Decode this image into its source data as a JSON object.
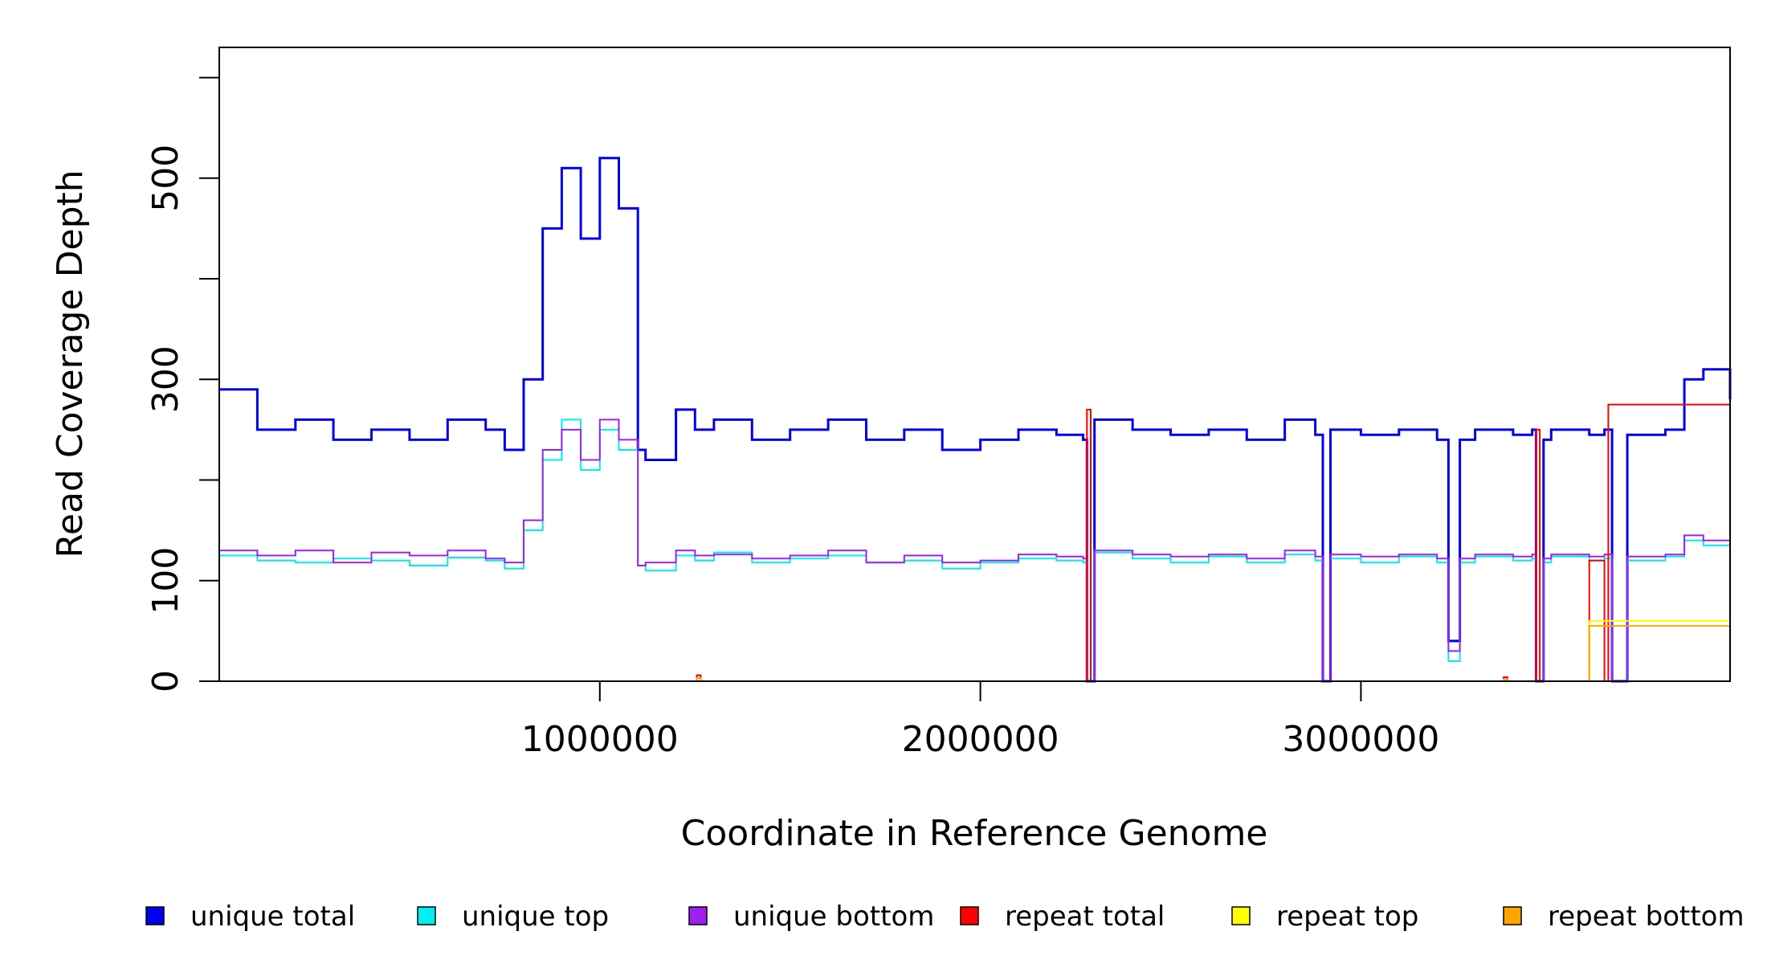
{
  "chart_data": {
    "type": "line",
    "title": "",
    "xlabel": "Coordinate in Reference Genome",
    "ylabel": "Read Coverage Depth",
    "xlim": [
      0,
      3970000
    ],
    "ylim": [
      0,
      630
    ],
    "x_ticks": [
      1000000,
      2000000,
      3000000
    ],
    "x_tick_labels": [
      "1000000",
      "2000000",
      "3000000"
    ],
    "y_ticks": [
      0,
      100,
      200,
      300,
      400,
      500,
      600
    ],
    "y_tick_labels": [
      "0",
      "100",
      "",
      "300",
      "",
      "500",
      ""
    ],
    "grid": false,
    "legend": "bottom",
    "series_style": "step",
    "series": [
      {
        "name": "unique total",
        "color": "#0000ee",
        "x": [
          0,
          100000,
          200000,
          300000,
          400000,
          500000,
          600000,
          700000,
          750000,
          800000,
          850000,
          900000,
          950000,
          1000000,
          1050000,
          1100000,
          1120000,
          1200000,
          1250000,
          1300000,
          1400000,
          1500000,
          1600000,
          1700000,
          1800000,
          1900000,
          2000000,
          2100000,
          2200000,
          2270000,
          2280000,
          2300000,
          2400000,
          2500000,
          2600000,
          2700000,
          2800000,
          2880000,
          2900000,
          2920000,
          3000000,
          3100000,
          3200000,
          3230000,
          3260000,
          3300000,
          3400000,
          3450000,
          3460000,
          3480000,
          3500000,
          3600000,
          3640000,
          3660000,
          3700000,
          3800000,
          3850000,
          3900000,
          3970000
        ],
        "values": [
          290,
          250,
          260,
          240,
          250,
          240,
          260,
          250,
          230,
          300,
          450,
          510,
          440,
          520,
          470,
          230,
          220,
          270,
          250,
          260,
          240,
          250,
          260,
          240,
          250,
          230,
          240,
          250,
          245,
          240,
          0,
          260,
          250,
          245,
          250,
          240,
          260,
          245,
          0,
          250,
          245,
          250,
          240,
          40,
          240,
          250,
          245,
          250,
          0,
          240,
          250,
          245,
          250,
          0,
          245,
          250,
          300,
          310,
          280
        ]
      },
      {
        "name": "unique top",
        "color": "#00eeee",
        "x": [
          0,
          100000,
          200000,
          300000,
          400000,
          500000,
          600000,
          700000,
          750000,
          800000,
          850000,
          900000,
          950000,
          1000000,
          1050000,
          1100000,
          1120000,
          1200000,
          1250000,
          1300000,
          1400000,
          1500000,
          1600000,
          1700000,
          1800000,
          1900000,
          2000000,
          2100000,
          2200000,
          2270000,
          2280000,
          2300000,
          2400000,
          2500000,
          2600000,
          2700000,
          2800000,
          2880000,
          2900000,
          2920000,
          3000000,
          3100000,
          3200000,
          3230000,
          3260000,
          3300000,
          3400000,
          3450000,
          3460000,
          3480000,
          3500000,
          3600000,
          3640000,
          3660000,
          3700000,
          3800000,
          3850000,
          3900000,
          3970000
        ],
        "values": [
          125,
          120,
          118,
          122,
          120,
          115,
          123,
          120,
          112,
          150,
          220,
          260,
          210,
          250,
          230,
          115,
          110,
          125,
          120,
          128,
          118,
          122,
          125,
          118,
          120,
          112,
          118,
          122,
          120,
          118,
          0,
          128,
          122,
          118,
          124,
          118,
          126,
          120,
          0,
          122,
          118,
          124,
          118,
          20,
          118,
          124,
          120,
          122,
          0,
          118,
          124,
          120,
          122,
          0,
          120,
          124,
          140,
          135,
          130
        ]
      },
      {
        "name": "unique bottom",
        "color": "#a020f0",
        "x": [
          0,
          100000,
          200000,
          300000,
          400000,
          500000,
          600000,
          700000,
          750000,
          800000,
          850000,
          900000,
          950000,
          1000000,
          1050000,
          1100000,
          1120000,
          1200000,
          1250000,
          1300000,
          1400000,
          1500000,
          1600000,
          1700000,
          1800000,
          1900000,
          2000000,
          2100000,
          2200000,
          2270000,
          2280000,
          2300000,
          2400000,
          2500000,
          2600000,
          2700000,
          2800000,
          2880000,
          2900000,
          2920000,
          3000000,
          3100000,
          3200000,
          3230000,
          3260000,
          3300000,
          3400000,
          3450000,
          3460000,
          3480000,
          3500000,
          3600000,
          3640000,
          3660000,
          3700000,
          3800000,
          3850000,
          3900000,
          3970000
        ],
        "values": [
          130,
          125,
          130,
          118,
          128,
          125,
          130,
          122,
          118,
          160,
          230,
          250,
          220,
          260,
          240,
          115,
          118,
          130,
          125,
          126,
          122,
          125,
          130,
          118,
          125,
          118,
          120,
          126,
          124,
          122,
          0,
          130,
          126,
          124,
          126,
          122,
          130,
          124,
          0,
          126,
          124,
          126,
          122,
          30,
          122,
          126,
          124,
          126,
          0,
          122,
          126,
          124,
          126,
          0,
          124,
          126,
          145,
          140,
          130
        ]
      },
      {
        "name": "repeat total",
        "color": "#ff0000",
        "x": [
          0,
          1250000,
          1255000,
          1265000,
          2270000,
          2280000,
          2290000,
          3370000,
          3375000,
          3385000,
          3460000,
          3470000,
          3590000,
          3600000,
          3640000,
          3650000,
          3970000
        ],
        "values": [
          0,
          0,
          6,
          0,
          0,
          270,
          0,
          0,
          4,
          0,
          250,
          0,
          0,
          120,
          0,
          275,
          0
        ]
      },
      {
        "name": "repeat top",
        "color": "#ffff00",
        "x": [
          0,
          3590000,
          3600000,
          3970000
        ],
        "values": [
          0,
          0,
          60,
          0
        ]
      },
      {
        "name": "repeat bottom",
        "color": "#ffa500",
        "x": [
          0,
          1250000,
          1255000,
          1265000,
          3370000,
          3375000,
          3385000,
          3590000,
          3600000,
          3970000
        ],
        "values": [
          0,
          0,
          3,
          0,
          0,
          2,
          0,
          0,
          55,
          0
        ]
      }
    ],
    "legend_entries": [
      {
        "label": "unique total",
        "color": "#0000ee"
      },
      {
        "label": "unique top",
        "color": "#00eeee"
      },
      {
        "label": "unique bottom",
        "color": "#a020f0"
      },
      {
        "label": "repeat total",
        "color": "#ff0000"
      },
      {
        "label": "repeat top",
        "color": "#ffff00"
      },
      {
        "label": "repeat bottom",
        "color": "#ffa500"
      }
    ]
  }
}
